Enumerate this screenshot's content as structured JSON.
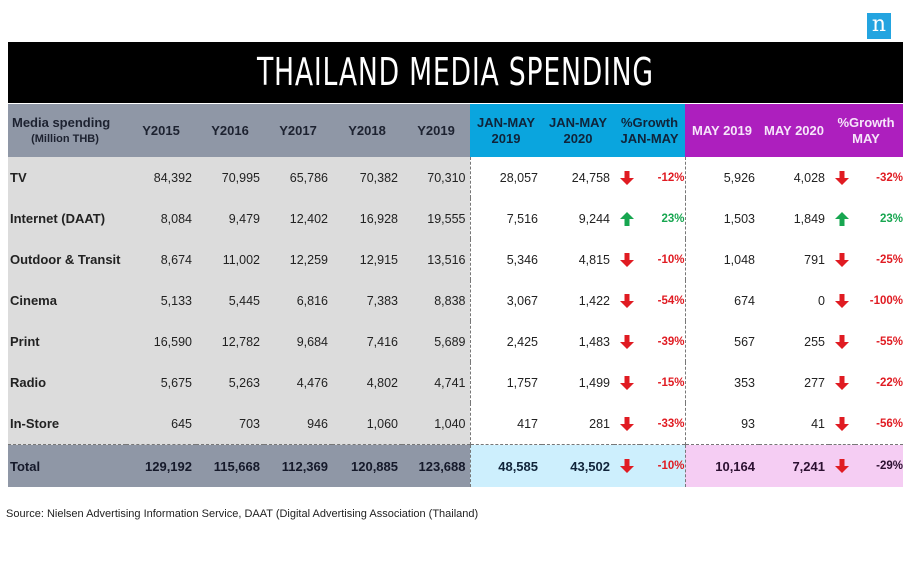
{
  "logo": "n",
  "title": "THAILAND  MEDIA SPENDING",
  "header": {
    "label_line1": "Media spending",
    "label_line2": "(Million THB)",
    "years": [
      "Y2015",
      "Y2016",
      "Y2017",
      "Y2018",
      "Y2019"
    ],
    "janmay2019": [
      "JAN-MAY",
      "2019"
    ],
    "janmay2020": [
      "JAN-MAY",
      "2020"
    ],
    "growth_janmay": [
      "%Growth",
      "JAN-MAY"
    ],
    "may2019": "MAY 2019",
    "may2020": "MAY 2020",
    "growth_may": [
      "%Growth",
      "MAY"
    ]
  },
  "rows": [
    {
      "name": "TV",
      "years": [
        "84,392",
        "70,995",
        "65,786",
        "70,382",
        "70,310"
      ],
      "jm19": "28,057",
      "jm20": "24,758",
      "jm_dir": "down",
      "jm_pct": "-12%",
      "m19": "5,926",
      "m20": "4,028",
      "m_dir": "down",
      "m_pct": "-32%"
    },
    {
      "name": "Internet (DAAT)",
      "years": [
        "8,084",
        "9,479",
        "12,402",
        "16,928",
        "19,555"
      ],
      "jm19": "7,516",
      "jm20": "9,244",
      "jm_dir": "up",
      "jm_pct": "23%",
      "m19": "1,503",
      "m20": "1,849",
      "m_dir": "up",
      "m_pct": "23%"
    },
    {
      "name": "Outdoor & Transit",
      "years": [
        "8,674",
        "11,002",
        "12,259",
        "12,915",
        "13,516"
      ],
      "jm19": "5,346",
      "jm20": "4,815",
      "jm_dir": "down",
      "jm_pct": "-10%",
      "m19": "1,048",
      "m20": "791",
      "m_dir": "down",
      "m_pct": "-25%"
    },
    {
      "name": "Cinema",
      "years": [
        "5,133",
        "5,445",
        "6,816",
        "7,383",
        "8,838"
      ],
      "jm19": "3,067",
      "jm20": "1,422",
      "jm_dir": "down",
      "jm_pct": "-54%",
      "m19": "674",
      "m20": "0",
      "m_dir": "down",
      "m_pct": "-100%"
    },
    {
      "name": "Print",
      "years": [
        "16,590",
        "12,782",
        "9,684",
        "7,416",
        "5,689"
      ],
      "jm19": "2,425",
      "jm20": "1,483",
      "jm_dir": "down",
      "jm_pct": "-39%",
      "m19": "567",
      "m20": "255",
      "m_dir": "down",
      "m_pct": "-55%"
    },
    {
      "name": "Radio",
      "years": [
        "5,675",
        "5,263",
        "4,476",
        "4,802",
        "4,741"
      ],
      "jm19": "1,757",
      "jm20": "1,499",
      "jm_dir": "down",
      "jm_pct": "-15%",
      "m19": "353",
      "m20": "277",
      "m_dir": "down",
      "m_pct": "-22%"
    },
    {
      "name": "In-Store",
      "years": [
        "645",
        "703",
        "946",
        "1,060",
        "1,040"
      ],
      "jm19": "417",
      "jm20": "281",
      "jm_dir": "down",
      "jm_pct": "-33%",
      "m19": "93",
      "m20": "41",
      "m_dir": "down",
      "m_pct": "-56%"
    }
  ],
  "total": {
    "name": "Total",
    "years": [
      "129,192",
      "115,668",
      "112,369",
      "120,885",
      "123,688"
    ],
    "jm19": "48,585",
    "jm20": "43,502",
    "jm_dir": "down",
    "jm_pct": "-10%",
    "m19": "10,164",
    "m20": "7,241",
    "m_dir": "down",
    "m_pct": "-29%"
  },
  "colors": {
    "gray_header": "#8f97a6",
    "cyan_header": "#0aa5de",
    "purple_header": "#ad1fbe",
    "down": "#e01b22",
    "up": "#17a650"
  },
  "source": "Source: Nielsen Advertising Information Service, DAAT  (Digital Advertising Association (Thailand)"
}
